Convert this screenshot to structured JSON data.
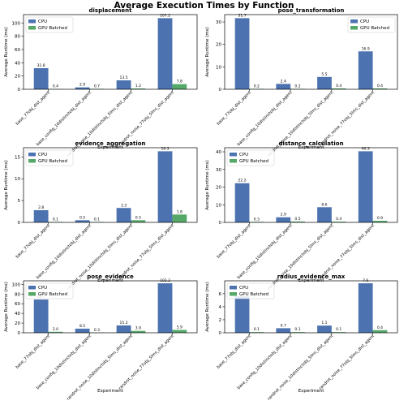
{
  "suptitle": "Average Execution Times by Function",
  "categories": [
    "base_77obj_dist_agent",
    "base_config_10distinctobj_dist_agent",
    "randrot_noise_10distinctobj_5lms_dist_agent",
    "randrot_noise_77obj_5lms_dist_agent"
  ],
  "series_names": [
    "CPU",
    "GPU Batched"
  ],
  "colors": {
    "cpu": "#4c72b0",
    "gpu": "#55a868"
  },
  "chart_data": [
    {
      "type": "bar",
      "title": "displacement",
      "xlabel": "Experiment",
      "ylabel": "Average Runtime (ms)",
      "ylim": [
        0,
        107.2
      ],
      "yticks": [
        0,
        20,
        40,
        60,
        80,
        100
      ],
      "categories": [
        "base_77obj_dist_agent",
        "base_config_10distinctobj_dist_agent",
        "randrot_noise_10distinctobj_5lms_dist_agent",
        "randrot_noise_77obj_5lms_dist_agent"
      ],
      "series": [
        {
          "name": "CPU",
          "values": [
            31.8,
            2.9,
            13.5,
            107.2
          ]
        },
        {
          "name": "GPU Batched",
          "values": [
            0.4,
            0.7,
            1.2,
            7.8
          ]
        }
      ],
      "labels": [
        [
          "31.8",
          "2.9",
          "13.5",
          "107.2"
        ],
        [
          "0.4",
          "0.7",
          "1.2",
          "7.8"
        ]
      ],
      "legend": "top-left",
      "grid": false
    },
    {
      "type": "bar",
      "title": "pose_transformation",
      "xlabel": "Experiment",
      "ylabel": "Average Runtime (ms)",
      "ylim": [
        0,
        31.7
      ],
      "yticks": [
        0,
        10,
        20,
        30
      ],
      "categories": [
        "base_77obj_dist_agent",
        "base_config_10distinctobj_dist_agent",
        "randrot_noise_10distinctobj_5lms_dist_agent",
        "randrot_noise_77obj_5lms_dist_agent"
      ],
      "series": [
        {
          "name": "CPU",
          "values": [
            31.7,
            2.4,
            5.5,
            16.9
          ]
        },
        {
          "name": "GPU Batched",
          "values": [
            0.2,
            0.2,
            0.4,
            0.4
          ]
        }
      ],
      "labels": [
        [
          "31.7",
          "2.4",
          "5.5",
          "16.9"
        ],
        [
          "0.2",
          "0.2",
          "0.4",
          "0.4"
        ]
      ],
      "legend": "top-right",
      "grid": false
    },
    {
      "type": "bar",
      "title": "evidence_aggregation",
      "xlabel": "Experiment",
      "ylabel": "Average Runtime (ms)",
      "ylim": [
        0,
        16.3
      ],
      "yticks": [
        0,
        5,
        10,
        15
      ],
      "categories": [
        "base_77obj_dist_agent",
        "base_config_10distinctobj_dist_agent",
        "randrot_noise_10distinctobj_5lms_dist_agent",
        "randrot_noise_77obj_5lms_dist_agent"
      ],
      "series": [
        {
          "name": "CPU",
          "values": [
            2.8,
            0.5,
            3.3,
            16.3
          ]
        },
        {
          "name": "GPU Batched",
          "values": [
            0.1,
            0.1,
            0.5,
            1.8
          ]
        }
      ],
      "labels": [
        [
          "2.8",
          "0.5",
          "3.3",
          "16.3"
        ],
        [
          "0.1",
          "0.1",
          "0.5",
          "1.8"
        ]
      ],
      "legend": "top-left",
      "grid": false
    },
    {
      "type": "bar",
      "title": "distance_calculation",
      "xlabel": "Experiment",
      "ylabel": "Average Runtime (ms)",
      "ylim": [
        0,
        40.3
      ],
      "yticks": [
        0,
        10,
        20,
        30,
        40
      ],
      "categories": [
        "base_77obj_dist_agent",
        "base_config_10distinctobj_dist_agent",
        "randrot_noise_10distinctobj_5lms_dist_agent",
        "randrot_noise_77obj_5lms_dist_agent"
      ],
      "series": [
        {
          "name": "CPU",
          "values": [
            22.2,
            2.9,
            8.6,
            40.3
          ]
        },
        {
          "name": "GPU Batched",
          "values": [
            0.3,
            0.5,
            0.4,
            0.9
          ]
        }
      ],
      "labels": [
        [
          "22.2",
          "2.9",
          "8.6",
          "40.3"
        ],
        [
          "0.3",
          "0.5",
          "0.4",
          "0.9"
        ]
      ],
      "legend": "top-left",
      "grid": false
    },
    {
      "type": "bar",
      "title": "pose_evidence",
      "xlabel": "Experiment",
      "ylabel": "Average Runtime (ms)",
      "ylim": [
        0,
        102.2
      ],
      "yticks": [
        0,
        20,
        40,
        60,
        80,
        100
      ],
      "categories": [
        "base_77obj_dist_agent",
        "base_config_10distinctobj_dist_agent",
        "randrot_noise_10distinctobj_5lms_dist_agent",
        "randrot_noise_77obj_5lms_dist_agent"
      ],
      "series": [
        {
          "name": "CPU",
          "values": [
            68.7,
            8.5,
            15.2,
            102.2
          ]
        },
        {
          "name": "GPU Batched",
          "values": [
            2.0,
            0.3,
            3.9,
            5.9
          ]
        }
      ],
      "labels": [
        [
          "68.7",
          "8.5",
          "15.2",
          "102.2"
        ],
        [
          "2.0",
          "0.3",
          "3.9",
          "5.9"
        ]
      ],
      "legend": "top-left",
      "grid": false
    },
    {
      "type": "bar",
      "title": "radius_evidence_max",
      "xlabel": "Experiment",
      "ylabel": "Average Runtime (ms)",
      "ylim": [
        0,
        7.6
      ],
      "yticks": [
        0,
        2,
        4,
        6
      ],
      "categories": [
        "base_77obj_dist_agent",
        "base_config_10distinctobj_dist_agent",
        "randrot_noise_10distinctobj_5lms_dist_agent",
        "randrot_noise_77obj_5lms_dist_agent"
      ],
      "series": [
        {
          "name": "CPU",
          "values": [
            5.6,
            0.7,
            1.1,
            7.6
          ]
        },
        {
          "name": "GPU Batched",
          "values": [
            0.1,
            0.1,
            0.1,
            0.4
          ]
        }
      ],
      "labels": [
        [
          "",
          "0.7",
          "1.1",
          "7.6"
        ],
        [
          "0.1",
          "0.1",
          "0.1",
          "0.4"
        ]
      ],
      "legend": "top-left",
      "grid": false
    }
  ]
}
